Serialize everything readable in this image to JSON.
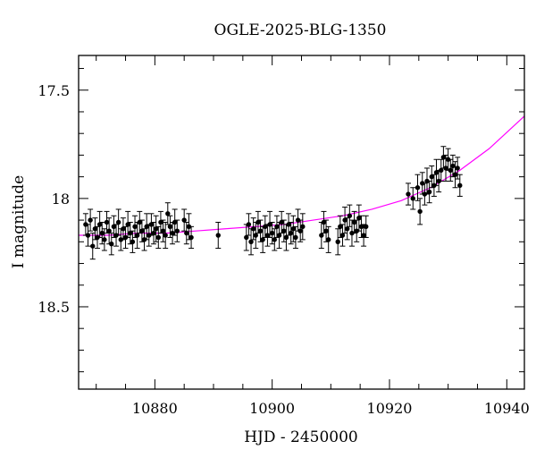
{
  "chart_data": {
    "type": "scatter",
    "title": "OGLE-2025-BLG-1350",
    "xlabel": "HJD - 2450000",
    "ylabel": "I magnitude",
    "xlim": [
      10867,
      10943
    ],
    "ylim": [
      18.88,
      17.34
    ],
    "y_inverted": true,
    "x_ticks": [
      10880,
      10900,
      10920,
      10940
    ],
    "x_tick_labels": [
      "10880",
      "10900",
      "10920",
      "10940"
    ],
    "y_ticks": [
      17.5,
      18,
      18.5
    ],
    "y_tick_labels": [
      "17.5",
      "18",
      "18.5"
    ],
    "grid": false,
    "series": [
      {
        "kind": "points",
        "color": "#000000",
        "points": [
          [
            10868.2,
            18.12,
            0.05
          ],
          [
            10868.6,
            18.17,
            0.05
          ],
          [
            10869.0,
            18.1,
            0.05
          ],
          [
            10869.4,
            18.22,
            0.06
          ],
          [
            10869.8,
            18.14,
            0.05
          ],
          [
            10870.2,
            18.18,
            0.05
          ],
          [
            10870.6,
            18.12,
            0.06
          ],
          [
            10871.0,
            18.16,
            0.05
          ],
          [
            10871.4,
            18.19,
            0.05
          ],
          [
            10871.8,
            18.11,
            0.05
          ],
          [
            10872.2,
            18.15,
            0.06
          ],
          [
            10872.6,
            18.21,
            0.05
          ],
          [
            10873.0,
            18.13,
            0.05
          ],
          [
            10873.4,
            18.17,
            0.05
          ],
          [
            10873.8,
            18.11,
            0.06
          ],
          [
            10874.2,
            18.19,
            0.05
          ],
          [
            10874.6,
            18.14,
            0.05
          ],
          [
            10875.0,
            18.18,
            0.05
          ],
          [
            10875.4,
            18.12,
            0.06
          ],
          [
            10875.8,
            18.16,
            0.05
          ],
          [
            10876.2,
            18.2,
            0.05
          ],
          [
            10876.6,
            18.13,
            0.05
          ],
          [
            10877.0,
            18.17,
            0.06
          ],
          [
            10877.4,
            18.11,
            0.05
          ],
          [
            10877.8,
            18.15,
            0.05
          ],
          [
            10878.2,
            18.19,
            0.05
          ],
          [
            10878.6,
            18.13,
            0.06
          ],
          [
            10879.0,
            18.17,
            0.05
          ],
          [
            10879.4,
            18.12,
            0.05
          ],
          [
            10879.8,
            18.16,
            0.05
          ],
          [
            10880.2,
            18.14,
            0.06
          ],
          [
            10880.6,
            18.18,
            0.05
          ],
          [
            10881.0,
            18.11,
            0.05
          ],
          [
            10881.4,
            18.15,
            0.05
          ],
          [
            10881.8,
            18.17,
            0.06
          ],
          [
            10882.2,
            18.07,
            0.05
          ],
          [
            10882.6,
            18.13,
            0.05
          ],
          [
            10883.0,
            18.16,
            0.05
          ],
          [
            10883.4,
            18.11,
            0.06
          ],
          [
            10883.8,
            18.15,
            0.05
          ],
          [
            10885.0,
            18.1,
            0.05
          ],
          [
            10885.4,
            18.16,
            0.05
          ],
          [
            10885.8,
            18.13,
            0.06
          ],
          [
            10886.2,
            18.18,
            0.05
          ],
          [
            10890.8,
            18.17,
            0.06
          ],
          [
            10895.6,
            18.18,
            0.06
          ],
          [
            10896.0,
            18.12,
            0.05
          ],
          [
            10896.4,
            18.2,
            0.06
          ],
          [
            10896.8,
            18.14,
            0.05
          ],
          [
            10897.2,
            18.17,
            0.06
          ],
          [
            10897.6,
            18.11,
            0.05
          ],
          [
            10898.0,
            18.15,
            0.05
          ],
          [
            10898.4,
            18.19,
            0.06
          ],
          [
            10898.8,
            18.13,
            0.05
          ],
          [
            10899.2,
            18.17,
            0.05
          ],
          [
            10899.6,
            18.12,
            0.06
          ],
          [
            10900.0,
            18.16,
            0.05
          ],
          [
            10900.4,
            18.19,
            0.05
          ],
          [
            10900.8,
            18.13,
            0.05
          ],
          [
            10901.2,
            18.17,
            0.06
          ],
          [
            10901.6,
            18.11,
            0.05
          ],
          [
            10902.0,
            18.15,
            0.05
          ],
          [
            10902.4,
            18.18,
            0.06
          ],
          [
            10902.8,
            18.12,
            0.05
          ],
          [
            10903.2,
            18.16,
            0.05
          ],
          [
            10903.6,
            18.14,
            0.06
          ],
          [
            10904.0,
            18.18,
            0.05
          ],
          [
            10904.4,
            18.1,
            0.05
          ],
          [
            10904.8,
            18.15,
            0.05
          ],
          [
            10905.2,
            18.13,
            0.06
          ],
          [
            10908.4,
            18.17,
            0.06
          ],
          [
            10908.8,
            18.11,
            0.05
          ],
          [
            10909.2,
            18.15,
            0.05
          ],
          [
            10909.6,
            18.19,
            0.06
          ],
          [
            10911.2,
            18.2,
            0.06
          ],
          [
            10911.6,
            18.13,
            0.05
          ],
          [
            10912.0,
            18.17,
            0.05
          ],
          [
            10912.4,
            18.1,
            0.06
          ],
          [
            10912.8,
            18.14,
            0.05
          ],
          [
            10913.2,
            18.08,
            0.05
          ],
          [
            10913.6,
            18.16,
            0.06
          ],
          [
            10914.0,
            18.11,
            0.05
          ],
          [
            10914.4,
            18.15,
            0.05
          ],
          [
            10914.8,
            18.09,
            0.06
          ],
          [
            10915.2,
            18.13,
            0.05
          ],
          [
            10915.6,
            18.17,
            0.05
          ],
          [
            10916.0,
            18.13,
            0.05
          ],
          [
            10923.2,
            17.98,
            0.05
          ],
          [
            10924.0,
            18.0,
            0.05
          ],
          [
            10924.8,
            17.95,
            0.06
          ],
          [
            10925.2,
            18.06,
            0.06
          ],
          [
            10925.6,
            17.93,
            0.05
          ],
          [
            10926.0,
            17.98,
            0.05
          ],
          [
            10926.4,
            17.92,
            0.06
          ],
          [
            10926.8,
            17.97,
            0.05
          ],
          [
            10927.2,
            17.9,
            0.05
          ],
          [
            10927.6,
            17.94,
            0.05
          ],
          [
            10928.0,
            17.88,
            0.06
          ],
          [
            10928.4,
            17.92,
            0.05
          ],
          [
            10928.8,
            17.87,
            0.05
          ],
          [
            10929.2,
            17.81,
            0.05
          ],
          [
            10929.6,
            17.86,
            0.06
          ],
          [
            10930.0,
            17.82,
            0.05
          ],
          [
            10930.4,
            17.87,
            0.05
          ],
          [
            10930.8,
            17.85,
            0.05
          ],
          [
            10931.2,
            17.89,
            0.06
          ],
          [
            10931.6,
            17.86,
            0.05
          ],
          [
            10932.0,
            17.94,
            0.05
          ]
        ]
      },
      {
        "kind": "model-curve",
        "color": "#ff00ff",
        "x": [
          10867,
          10872,
          10877,
          10882,
          10887,
          10892,
          10897,
          10902,
          10907,
          10912,
          10917,
          10922,
          10927,
          10932,
          10937,
          10943
        ],
        "y": [
          18.17,
          18.17,
          18.16,
          18.16,
          18.15,
          18.14,
          18.13,
          18.12,
          18.1,
          18.08,
          18.05,
          18.01,
          17.95,
          17.87,
          17.77,
          17.62
        ]
      }
    ]
  }
}
